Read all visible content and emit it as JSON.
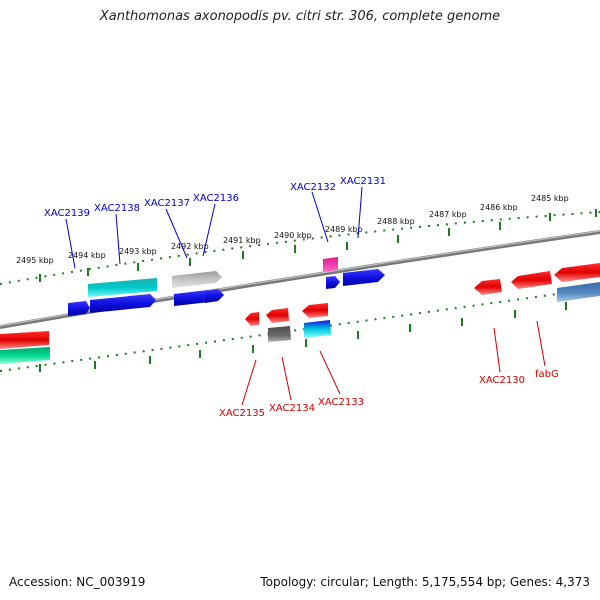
{
  "title": "Xanthomonas axonopodis pv. citri str. 306, complete genome",
  "footer": {
    "accession": "Accession: NC_003919",
    "stats": "Topology: circular; Length: 5,175,554 bp; Genes: 4,373"
  },
  "kbp_ticks": [
    "2495 kbp",
    "2494 kbp",
    "2493 kbp",
    "2492 kbp",
    "2491 kbp",
    "2490 kbp",
    "2489 kbp",
    "2488 kbp",
    "2487 kbp",
    "2486 kbp",
    "2485 kbp"
  ],
  "genes_upper": [
    "XAC2139",
    "XAC2138",
    "XAC2137",
    "XAC2136",
    "XAC2132",
    "XAC2131"
  ],
  "genes_lower": [
    "XAC2135",
    "XAC2134",
    "XAC2133",
    "XAC2130",
    "fabG"
  ],
  "colors": {
    "upper_label": "#0000cc",
    "lower_label": "#cc0000",
    "backbone": "#8a8a8a",
    "tick": "#1f7a1f"
  }
}
